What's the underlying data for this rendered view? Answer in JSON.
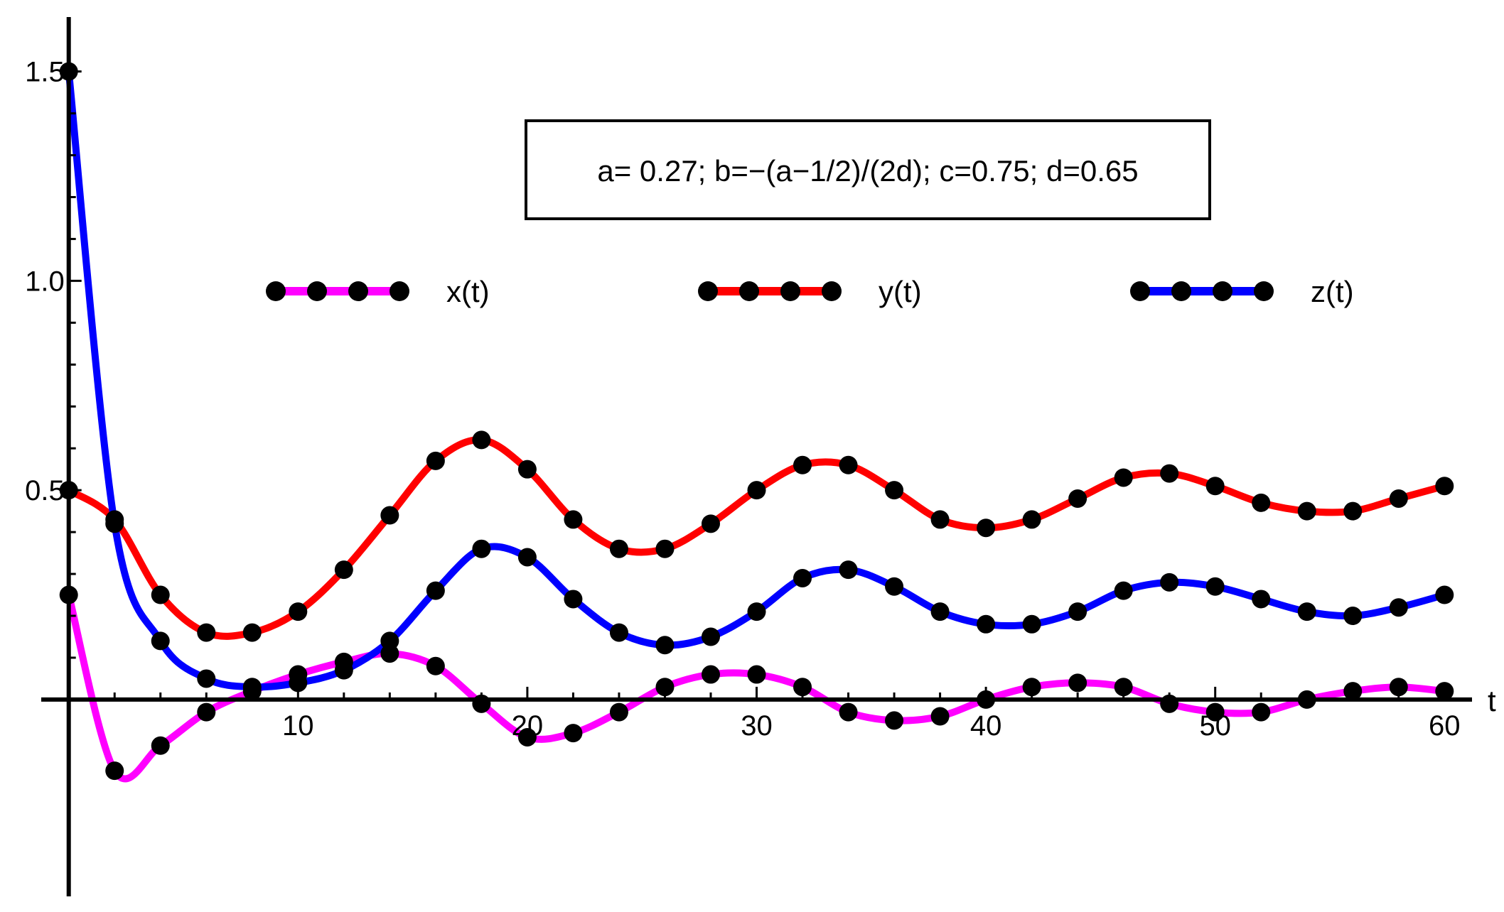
{
  "chart_data": {
    "type": "line",
    "title": "",
    "xlabel": "t",
    "ylabel": "",
    "xlim": [
      -1.2,
      61.2
    ],
    "ylim": [
      -0.47,
      1.63
    ],
    "x_ticks": [
      10,
      20,
      30,
      40,
      50,
      60
    ],
    "x_tick_labels": [
      "10",
      "20",
      "30",
      "40",
      "50",
      "60"
    ],
    "y_ticks": [
      0.5,
      1.0,
      1.5
    ],
    "y_tick_labels": [
      "0.5",
      "1.0",
      "1.5"
    ],
    "grid": false,
    "legend_position": "top",
    "annotation": "a= 0.27; b=−(a−1/2)/(2d); c=0.75; d=0.65",
    "marker_color": "#000000",
    "series": [
      {
        "name": "x(t)",
        "color": "#ff00ff",
        "x": [
          0,
          2,
          4,
          6,
          8,
          10,
          12,
          14,
          16,
          18,
          20,
          22,
          24,
          26,
          28,
          30,
          32,
          34,
          36,
          38,
          40,
          42,
          44,
          46,
          48,
          50,
          52,
          54,
          56,
          58,
          60
        ],
        "values": [
          0.25,
          -0.17,
          -0.11,
          -0.03,
          0.02,
          0.06,
          0.09,
          0.11,
          0.08,
          -0.01,
          -0.09,
          -0.08,
          -0.03,
          0.03,
          0.06,
          0.06,
          0.03,
          -0.03,
          -0.05,
          -0.04,
          0.0,
          0.03,
          0.04,
          0.03,
          -0.01,
          -0.03,
          -0.03,
          0.0,
          0.02,
          0.03,
          0.02
        ]
      },
      {
        "name": "y(t)",
        "color": "#ff0000",
        "x": [
          0,
          2,
          4,
          6,
          8,
          10,
          12,
          14,
          16,
          18,
          20,
          22,
          24,
          26,
          28,
          30,
          32,
          34,
          36,
          38,
          40,
          42,
          44,
          46,
          48,
          50,
          52,
          54,
          56,
          58,
          60
        ],
        "values": [
          0.5,
          0.43,
          0.25,
          0.16,
          0.16,
          0.21,
          0.31,
          0.44,
          0.57,
          0.62,
          0.55,
          0.43,
          0.36,
          0.36,
          0.42,
          0.5,
          0.56,
          0.56,
          0.5,
          0.43,
          0.41,
          0.43,
          0.48,
          0.53,
          0.54,
          0.51,
          0.47,
          0.45,
          0.45,
          0.48,
          0.51
        ]
      },
      {
        "name": "z(t)",
        "color": "#0000ff",
        "x": [
          0,
          2,
          4,
          6,
          8,
          10,
          12,
          14,
          16,
          18,
          20,
          22,
          24,
          26,
          28,
          30,
          32,
          34,
          36,
          38,
          40,
          42,
          44,
          46,
          48,
          50,
          52,
          54,
          56,
          58,
          60
        ],
        "values": [
          1.5,
          0.42,
          0.14,
          0.05,
          0.03,
          0.04,
          0.07,
          0.14,
          0.26,
          0.36,
          0.34,
          0.24,
          0.16,
          0.13,
          0.15,
          0.21,
          0.29,
          0.31,
          0.27,
          0.21,
          0.18,
          0.18,
          0.21,
          0.26,
          0.28,
          0.27,
          0.24,
          0.21,
          0.2,
          0.22,
          0.25
        ]
      }
    ]
  }
}
